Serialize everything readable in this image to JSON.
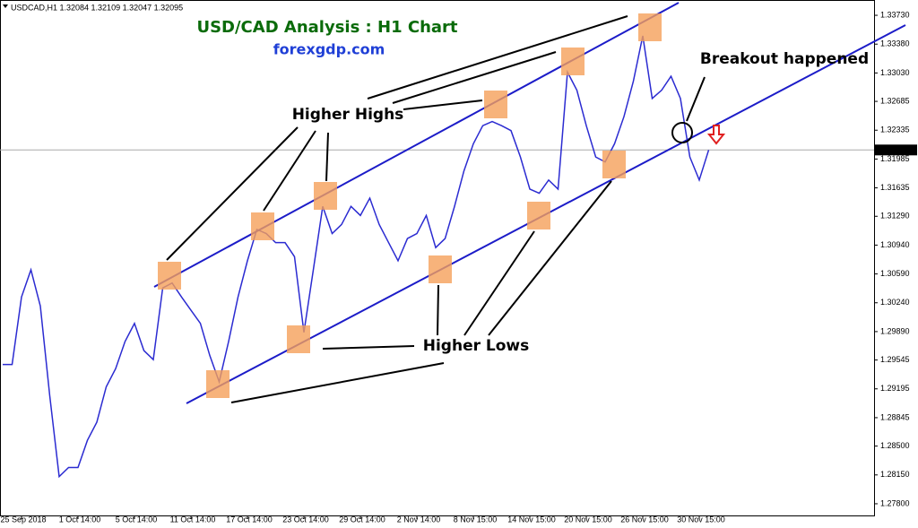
{
  "chart_data": {
    "type": "line",
    "header": "USDCAD,H1  1.32084 1.32109 1.32047 1.32095",
    "title": "USD/CAD Analysis : H1 Chart",
    "subtitle": "forexgdp.com",
    "annotations": [
      "Higher Highs",
      "Higher Lows",
      "Breakout happened"
    ],
    "current_price": 1.32095,
    "color": "#2b2bd1",
    "categories": [
      null,
      null,
      "25 Sep 2018",
      null,
      null,
      null,
      null,
      null,
      "1 Oct 14:00",
      null,
      null,
      null,
      null,
      null,
      "5 Oct 14:00",
      null,
      null,
      null,
      null,
      null,
      "11 Oct 14:00",
      null,
      null,
      null,
      null,
      null,
      "17 Oct 14:00",
      null,
      null,
      null,
      null,
      null,
      "23 Oct 14:00",
      null,
      null,
      null,
      null,
      null,
      "29 Oct 14:00",
      null,
      null,
      null,
      null,
      null,
      "2 Nov 14:00",
      null,
      null,
      null,
      null,
      null,
      "8 Nov 15:00",
      null,
      null,
      null,
      null,
      null,
      "14 Nov 15:00",
      null,
      null,
      null,
      null,
      null,
      "20 Nov 15:00",
      null,
      null,
      null,
      null,
      null,
      "26 Nov 15:00",
      null,
      null,
      null,
      null,
      null,
      "30 Nov 15:00",
      null
    ],
    "values": [
      1.2949,
      1.2949,
      1.3031,
      1.3064,
      1.302,
      1.2911,
      1.2813,
      1.2824,
      1.2824,
      1.2857,
      1.2879,
      1.2922,
      1.2944,
      1.2977,
      1.2999,
      1.2966,
      1.2955,
      1.3042,
      1.3048,
      1.3031,
      1.3015,
      1.2999,
      1.296,
      1.2928,
      1.2977,
      1.3031,
      1.3075,
      1.3113,
      1.3108,
      1.3097,
      1.3097,
      1.308,
      1.2988,
      1.3064,
      1.3141,
      1.3108,
      1.3119,
      1.3141,
      1.313,
      1.3151,
      1.3119,
      1.3097,
      1.3075,
      1.3102,
      1.3108,
      1.313,
      1.3091,
      1.3102,
      1.3141,
      1.3184,
      1.3217,
      1.3239,
      1.3244,
      1.3239,
      1.3233,
      1.3201,
      1.3162,
      1.3157,
      1.3173,
      1.3162,
      1.3304,
      1.3282,
      1.3239,
      1.3201,
      1.3195,
      1.3217,
      1.325,
      1.3293,
      1.3348,
      1.3272,
      1.3282,
      1.3299,
      1.3272,
      1.3201,
      1.3173,
      1.32095
    ],
    "ylim": [
      1.27658,
      1.33883
    ],
    "yticks": [
      {
        "value": 1.3373,
        "label": "1.33730"
      },
      {
        "value": 1.3338,
        "label": "1.33380"
      },
      {
        "value": 1.3303,
        "label": "1.33030"
      },
      1.32685,
      1.32335,
      1.31985,
      1.31635,
      {
        "value": 1.3129,
        "label": "1.31290"
      },
      {
        "value": 1.3094,
        "label": "1.30940"
      },
      {
        "value": 1.3059,
        "label": "1.30590"
      },
      {
        "value": 1.3024,
        "label": "1.30240"
      },
      {
        "value": 1.2989,
        "label": "1.29890"
      },
      1.29545,
      1.29195,
      1.28845,
      {
        "value": 1.285,
        "label": "1.28500"
      },
      {
        "value": 1.2815,
        "label": "1.28150"
      },
      {
        "value": 1.278,
        "label": "1.27800"
      }
    ],
    "grid": false
  }
}
